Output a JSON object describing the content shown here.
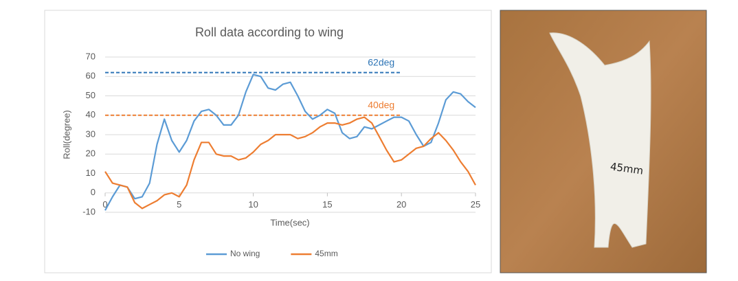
{
  "chart_data": {
    "type": "line",
    "title": "Roll data according to wing",
    "x_label": "Time(sec)",
    "y_label": "Roll(degree)",
    "x": [
      0,
      0.5,
      1,
      1.5,
      2,
      2.5,
      3,
      3.5,
      4,
      4.5,
      5,
      5.5,
      6,
      6.5,
      7,
      7.5,
      8,
      8.5,
      9,
      9.5,
      10,
      10.5,
      11,
      11.5,
      12,
      12.5,
      13,
      13.5,
      14,
      14.5,
      15,
      15.5,
      16,
      16.5,
      17,
      17.5,
      18,
      18.5,
      19,
      19.5,
      20,
      20.5,
      21,
      21.5,
      22,
      22.5,
      23,
      23.5,
      24,
      24.5,
      25
    ],
    "series": [
      {
        "name": "No wing",
        "color": "#5b9bd5",
        "values": [
          -9,
          -2,
          4,
          3,
          -3,
          -2,
          5,
          25,
          38,
          27,
          21,
          27,
          37,
          42,
          43,
          40,
          35,
          35,
          40,
          52,
          61,
          60,
          54,
          53,
          56,
          57,
          50,
          42,
          38,
          40,
          43,
          41,
          31,
          28,
          29,
          34,
          33,
          35,
          37,
          39,
          39,
          37,
          30,
          24,
          26,
          36,
          48,
          52,
          51,
          47,
          44
        ]
      },
      {
        "name": "45mm",
        "color": "#ed7d31",
        "values": [
          11,
          5,
          4,
          3,
          -5,
          -8,
          -6,
          -4,
          -1,
          0,
          -2,
          4,
          17,
          26,
          26,
          20,
          19,
          19,
          17,
          18,
          21,
          25,
          27,
          30,
          30,
          30,
          28,
          29,
          31,
          34,
          36,
          36,
          35,
          36,
          38,
          39,
          36,
          29,
          22,
          16,
          17,
          20,
          23,
          24,
          28,
          31,
          27,
          22,
          16,
          11,
          4
        ]
      }
    ],
    "annotations": [
      {
        "text": "62deg",
        "y": 62,
        "x": [
          0,
          20
        ],
        "color": "#2e75b6"
      },
      {
        "text": "40deg",
        "y": 40,
        "x": [
          0,
          20
        ],
        "color": "#ed7d31"
      }
    ],
    "xlim": [
      0,
      25
    ],
    "xticks": [
      0,
      5,
      10,
      15,
      20,
      25
    ],
    "ylim": [
      -10,
      70
    ],
    "yticks": [
      -10,
      0,
      10,
      20,
      30,
      40,
      50,
      60,
      70
    ],
    "grid": true,
    "legend": "bottom"
  },
  "photo": {
    "label": "45mm"
  }
}
